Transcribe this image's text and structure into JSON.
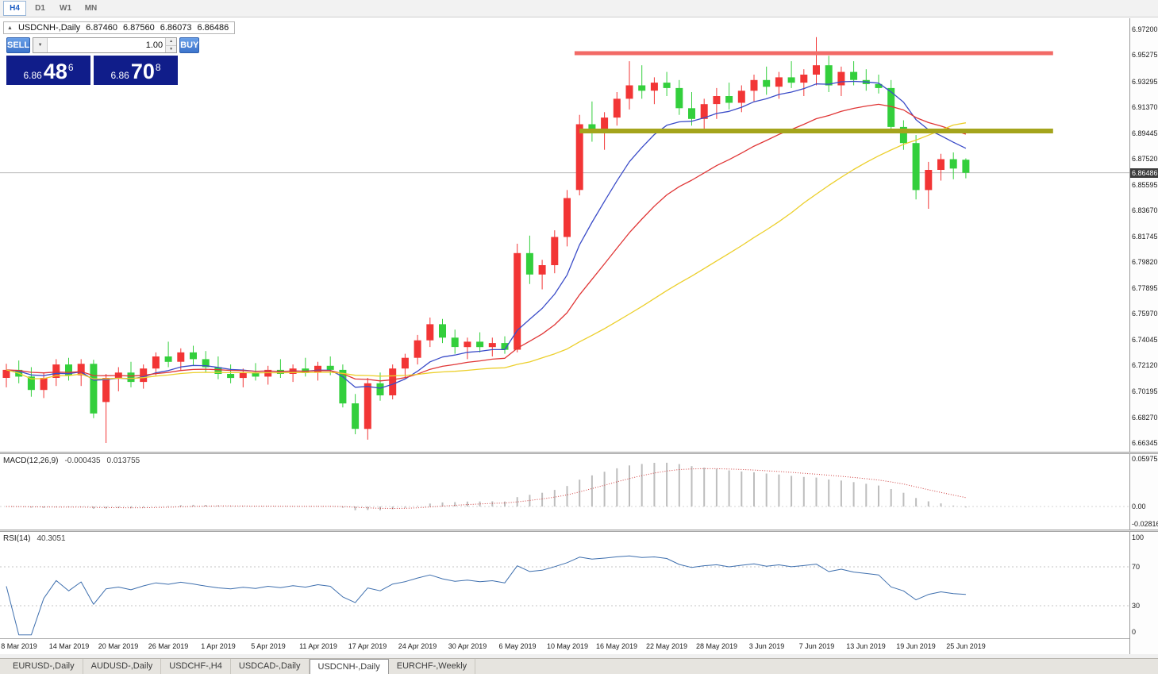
{
  "toolbar": {
    "timeframes": [
      {
        "label": "H4",
        "active": true
      },
      {
        "label": "D1",
        "active": false
      },
      {
        "label": "W1",
        "active": false
      },
      {
        "label": "MN",
        "active": false
      }
    ]
  },
  "chart_header": {
    "collapse_icon": "▲",
    "title": "USDCNH-,Daily",
    "open": "6.87460",
    "high": "6.87560",
    "low": "6.86073",
    "close": "6.86486"
  },
  "one_click": {
    "sell_label": "SELL",
    "buy_label": "BUY",
    "volume": "1.00",
    "dropdown_icon": "▼",
    "spin_up_icon": "▲",
    "spin_down_icon": "▼",
    "sell_price": {
      "small": "6.86",
      "big": "48",
      "sup": "6"
    },
    "buy_price": {
      "small": "6.86",
      "big": "70",
      "sup": "8"
    }
  },
  "indicators": {
    "macd": {
      "title": "MACD(12,26,9)",
      "main_value": "-0.000435",
      "signal_value": "0.013755",
      "scale_labels": [
        "0.059758",
        "0.00",
        "-0.02816"
      ],
      "params": {
        "fast": 12,
        "slow": 26,
        "signal": 9
      }
    },
    "rsi": {
      "title": "RSI(14)",
      "value": "40.3051",
      "scale_labels": [
        "100",
        "70",
        "30",
        "0"
      ],
      "levels": [
        70,
        30
      ],
      "period": 14
    }
  },
  "bottom_tabs": [
    {
      "label": "EURUSD-,Daily",
      "active": false
    },
    {
      "label": "AUDUSD-,Daily",
      "active": false
    },
    {
      "label": "USDCHF-,H4",
      "active": false
    },
    {
      "label": "USDCAD-,Daily",
      "active": false
    },
    {
      "label": "USDCNH-,Daily",
      "active": true
    },
    {
      "label": "EURCHF-,Weekly",
      "active": false
    }
  ],
  "colors": {
    "bull": "#f23535",
    "bear": "#33cf3c",
    "ma_fast": "#3b4cc8",
    "ma_mid": "#e03636",
    "ma_slow": "#eccf2b",
    "resistance_line": "#f26a66",
    "support_line": "#a4a41c",
    "bid_line": "#b8b8b8",
    "bid_label_bg": "#3c3c3c",
    "macd_hist": "#bdbdbd",
    "macd_signal": "#cf4040",
    "rsi_line": "#3e6fae",
    "button_blue": "#3f7fd6",
    "price_box_bg": "#101d8a"
  },
  "chart_data": {
    "type": "candlestick",
    "symbol": "USDCNH-",
    "timeframe": "Daily",
    "current_price": 6.86486,
    "ohlc_current": {
      "open": 6.8746,
      "high": 6.8756,
      "low": 6.86073,
      "close": 6.86486
    },
    "y_max": 6.98,
    "y_min": 6.657,
    "price_scale_labels": [
      "6.97200",
      "6.95275",
      "6.93295",
      "6.91370",
      "6.89445",
      "6.87520",
      "6.85595",
      "6.83670",
      "6.81745",
      "6.79820",
      "6.77895",
      "6.75970",
      "6.74045",
      "6.72120",
      "6.70195",
      "6.68270",
      "6.66345"
    ],
    "x_labels": [
      {
        "text": "8 Mar 2019",
        "bar": 1
      },
      {
        "text": "14 Mar 2019",
        "bar": 5
      },
      {
        "text": "20 Mar 2019",
        "bar": 9
      },
      {
        "text": "26 Mar 2019",
        "bar": 13
      },
      {
        "text": "1 Apr 2019",
        "bar": 17
      },
      {
        "text": "5 Apr 2019",
        "bar": 21
      },
      {
        "text": "11 Apr 2019",
        "bar": 25
      },
      {
        "text": "17 Apr 2019",
        "bar": 29
      },
      {
        "text": "24 Apr 2019",
        "bar": 33
      },
      {
        "text": "30 Apr 2019",
        "bar": 37
      },
      {
        "text": "6 May 2019",
        "bar": 41
      },
      {
        "text": "10 May 2019",
        "bar": 45
      },
      {
        "text": "16 May 2019",
        "bar": 49
      },
      {
        "text": "22 May 2019",
        "bar": 53
      },
      {
        "text": "28 May 2019",
        "bar": 57
      },
      {
        "text": "3 Jun 2019",
        "bar": 61
      },
      {
        "text": "7 Jun 2019",
        "bar": 65
      },
      {
        "text": "13 Jun 2019",
        "bar": 69
      },
      {
        "text": "19 Jun 2019",
        "bar": 73
      },
      {
        "text": "25 Jun 2019",
        "bar": 77
      }
    ],
    "bars": [
      [
        6.712,
        6.7225,
        6.705,
        6.718
      ],
      [
        6.718,
        6.725,
        6.708,
        6.713
      ],
      [
        6.713,
        6.72,
        6.698,
        6.703
      ],
      [
        6.703,
        6.716,
        6.697,
        6.712
      ],
      [
        6.712,
        6.726,
        6.706,
        6.722
      ],
      [
        6.722,
        6.727,
        6.71,
        6.714
      ],
      [
        6.714,
        6.726,
        6.706,
        6.7225
      ],
      [
        6.7225,
        6.7255,
        6.682,
        6.6855
      ],
      [
        6.694,
        6.715,
        6.6635,
        6.712
      ],
      [
        6.712,
        6.72,
        6.702,
        6.716
      ],
      [
        6.716,
        6.724,
        6.705,
        6.709
      ],
      [
        6.709,
        6.722,
        6.704,
        6.719
      ],
      [
        6.719,
        6.731,
        6.714,
        6.728
      ],
      [
        6.728,
        6.739,
        6.72,
        6.724
      ],
      [
        6.724,
        6.734,
        6.718,
        6.731
      ],
      [
        6.731,
        6.736,
        6.721,
        6.726
      ],
      [
        6.726,
        6.732,
        6.716,
        6.72
      ],
      [
        6.72,
        6.728,
        6.711,
        6.715
      ],
      [
        6.715,
        6.722,
        6.708,
        6.712
      ],
      [
        6.712,
        6.719,
        6.705,
        6.716
      ],
      [
        6.716,
        6.723,
        6.71,
        6.713
      ],
      [
        6.713,
        6.721,
        6.707,
        6.718
      ],
      [
        6.718,
        6.726,
        6.712,
        6.715
      ],
      [
        6.715,
        6.722,
        6.709,
        6.719
      ],
      [
        6.719,
        6.727,
        6.713,
        6.716
      ],
      [
        6.716,
        6.724,
        6.71,
        6.721
      ],
      [
        6.721,
        6.728,
        6.714,
        6.718
      ],
      [
        6.718,
        6.722,
        6.69,
        6.693
      ],
      [
        6.693,
        6.7,
        6.67,
        6.674
      ],
      [
        6.674,
        6.712,
        6.666,
        6.708
      ],
      [
        6.708,
        6.716,
        6.695,
        6.699
      ],
      [
        6.699,
        6.722,
        6.696,
        6.719
      ],
      [
        6.719,
        6.73,
        6.712,
        6.727
      ],
      [
        6.727,
        6.744,
        6.722,
        6.74
      ],
      [
        6.74,
        6.757,
        6.735,
        6.752
      ],
      [
        6.752,
        6.756,
        6.738,
        6.742
      ],
      [
        6.742,
        6.748,
        6.73,
        6.735
      ],
      [
        6.735,
        6.742,
        6.726,
        6.739
      ],
      [
        6.739,
        6.746,
        6.731,
        6.735
      ],
      [
        6.735,
        6.742,
        6.728,
        6.738
      ],
      [
        6.738,
        6.743,
        6.73,
        6.733
      ],
      [
        6.733,
        6.812,
        6.731,
        6.805
      ],
      [
        6.805,
        6.818,
        6.782,
        6.789
      ],
      [
        6.789,
        6.8,
        6.778,
        6.796
      ],
      [
        6.796,
        6.822,
        6.79,
        6.817
      ],
      [
        6.817,
        6.852,
        6.81,
        6.846
      ],
      [
        6.852,
        6.908,
        6.848,
        6.901
      ],
      [
        6.901,
        6.918,
        6.888,
        6.895
      ],
      [
        6.895,
        6.91,
        6.882,
        6.906
      ],
      [
        6.906,
        6.925,
        6.9,
        6.92
      ],
      [
        6.92,
        6.948,
        6.912,
        6.93
      ],
      [
        6.93,
        6.945,
        6.92,
        6.926
      ],
      [
        6.926,
        6.936,
        6.916,
        6.932
      ],
      [
        6.932,
        6.94,
        6.922,
        6.928
      ],
      [
        6.928,
        6.934,
        6.908,
        6.913
      ],
      [
        6.913,
        6.925,
        6.9,
        6.905
      ],
      [
        6.905,
        6.92,
        6.895,
        6.916
      ],
      [
        6.916,
        6.928,
        6.905,
        6.922
      ],
      [
        6.922,
        6.932,
        6.912,
        6.917
      ],
      [
        6.917,
        6.93,
        6.91,
        6.926
      ],
      [
        6.926,
        6.938,
        6.918,
        6.934
      ],
      [
        6.934,
        6.944,
        6.923,
        6.929
      ],
      [
        6.929,
        6.94,
        6.92,
        6.936
      ],
      [
        6.936,
        6.948,
        6.928,
        6.932
      ],
      [
        6.932,
        6.942,
        6.922,
        6.938
      ],
      [
        6.938,
        6.966,
        6.93,
        6.945
      ],
      [
        6.945,
        6.952,
        6.925,
        6.93
      ],
      [
        6.93,
        6.944,
        6.922,
        6.94
      ],
      [
        6.94,
        6.948,
        6.93,
        6.934
      ],
      [
        6.934,
        6.942,
        6.926,
        6.931
      ],
      [
        6.931,
        6.938,
        6.924,
        6.928
      ],
      [
        6.928,
        6.934,
        6.895,
        6.899
      ],
      [
        6.899,
        6.904,
        6.882,
        6.887
      ],
      [
        6.887,
        6.893,
        6.845,
        6.852
      ],
      [
        6.852,
        6.873,
        6.838,
        6.867
      ],
      [
        6.867,
        6.879,
        6.859,
        6.875
      ],
      [
        6.875,
        6.88,
        6.86,
        6.868
      ],
      [
        6.8746,
        6.8756,
        6.86073,
        6.86486
      ]
    ],
    "moving_averages": [
      {
        "name": "fast",
        "type": "ema",
        "period": 9,
        "color": "#3b4cc8"
      },
      {
        "name": "medium",
        "type": "ema",
        "period": 20,
        "color": "#e03636"
      },
      {
        "name": "slow",
        "type": "sma",
        "period": 36,
        "color": "#eccf2b"
      }
    ],
    "horizontal_lines": [
      {
        "name": "resistance",
        "price": 6.954,
        "from_bar": 45.6,
        "to_bar": 84,
        "color": "#f26a66",
        "width": 5
      },
      {
        "name": "support",
        "price": 6.896,
        "from_bar": 46,
        "to_bar": 84,
        "color": "#a4a41c",
        "width": 6
      }
    ]
  }
}
